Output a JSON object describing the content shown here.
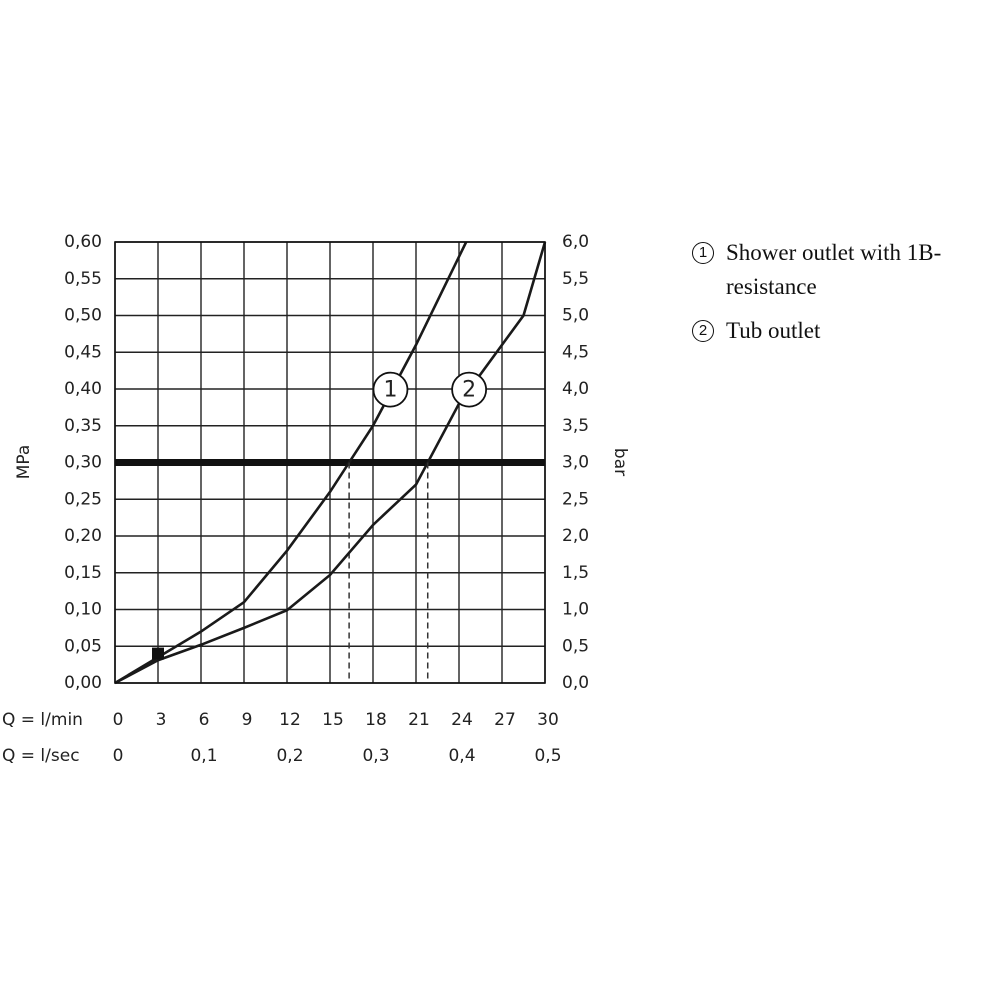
{
  "chart_data": {
    "type": "line",
    "xlabel": "Q = l/min",
    "x2label": "Q = l/sec",
    "ylabel": "MPa",
    "y2label": "bar",
    "xlim": [
      0,
      30
    ],
    "xticks": [
      0,
      3,
      6,
      9,
      12,
      15,
      18,
      21,
      24,
      27,
      30
    ],
    "x2lim": [
      0,
      0.5
    ],
    "x2ticks": [
      0,
      {
        "value": 0.1,
        "label": "0,1"
      },
      {
        "value": 0.2,
        "label": "0,2"
      },
      {
        "value": 0.3,
        "label": "0,3"
      },
      {
        "value": 0.4,
        "label": "0,4"
      },
      {
        "value": 0.5,
        "label": "0,5"
      }
    ],
    "ylim": [
      0,
      0.6
    ],
    "yticks": [
      {
        "value": 0,
        "label": "0,00"
      },
      {
        "value": 0.05,
        "label": "0,05"
      },
      {
        "value": 0.1,
        "label": "0,10"
      },
      {
        "value": 0.15,
        "label": "0,15"
      },
      {
        "value": 0.2,
        "label": "0,20"
      },
      {
        "value": 0.25,
        "label": "0,25"
      },
      {
        "value": 0.3,
        "label": "0,30"
      },
      {
        "value": 0.35,
        "label": "0,35"
      },
      {
        "value": 0.4,
        "label": "0,40"
      },
      {
        "value": 0.45,
        "label": "0,45"
      },
      {
        "value": 0.5,
        "label": "0,50"
      },
      {
        "value": 0.55,
        "label": "0,55"
      },
      {
        "value": 0.6,
        "label": "0,60"
      }
    ],
    "y2lim": [
      0,
      6
    ],
    "y2ticks": [
      {
        "value": 0,
        "label": "0,0"
      },
      {
        "value": 0.5,
        "label": "0,5"
      },
      {
        "value": 1,
        "label": "1,0"
      },
      {
        "value": 1.5,
        "label": "1,5"
      },
      {
        "value": 2,
        "label": "2,0"
      },
      {
        "value": 2.5,
        "label": "2,5"
      },
      {
        "value": 3,
        "label": "3,0"
      },
      {
        "value": 3.5,
        "label": "3,5"
      },
      {
        "value": 4,
        "label": "4,0"
      },
      {
        "value": 4.5,
        "label": "4,5"
      },
      {
        "value": 5,
        "label": "5,0"
      },
      {
        "value": 5.5,
        "label": "5,5"
      },
      {
        "value": 6,
        "label": "6,0"
      }
    ],
    "grid": true,
    "color": "#1a1a1a",
    "highlight_y": 0.3,
    "point": {
      "x": 3,
      "y": 0.04
    },
    "series": [
      {
        "name": "Shower outlet with 1B-resistance",
        "marker": "1",
        "x": [
          0,
          3,
          6,
          9,
          12,
          15,
          18,
          21,
          24,
          24.5
        ],
        "values": [
          0,
          0.035,
          0.07,
          0.11,
          0.18,
          0.26,
          0.35,
          0.46,
          0.58,
          0.6
        ]
      },
      {
        "name": "Tub outlet",
        "marker": "2",
        "x": [
          0,
          3,
          6,
          9,
          12,
          15,
          18,
          21,
          24,
          27,
          28.5,
          30
        ],
        "values": [
          0,
          0.031,
          0.052,
          0.075,
          0.099,
          0.147,
          0.215,
          0.27,
          0.38,
          0.46,
          0.5,
          0.6
        ]
      }
    ]
  }
}
